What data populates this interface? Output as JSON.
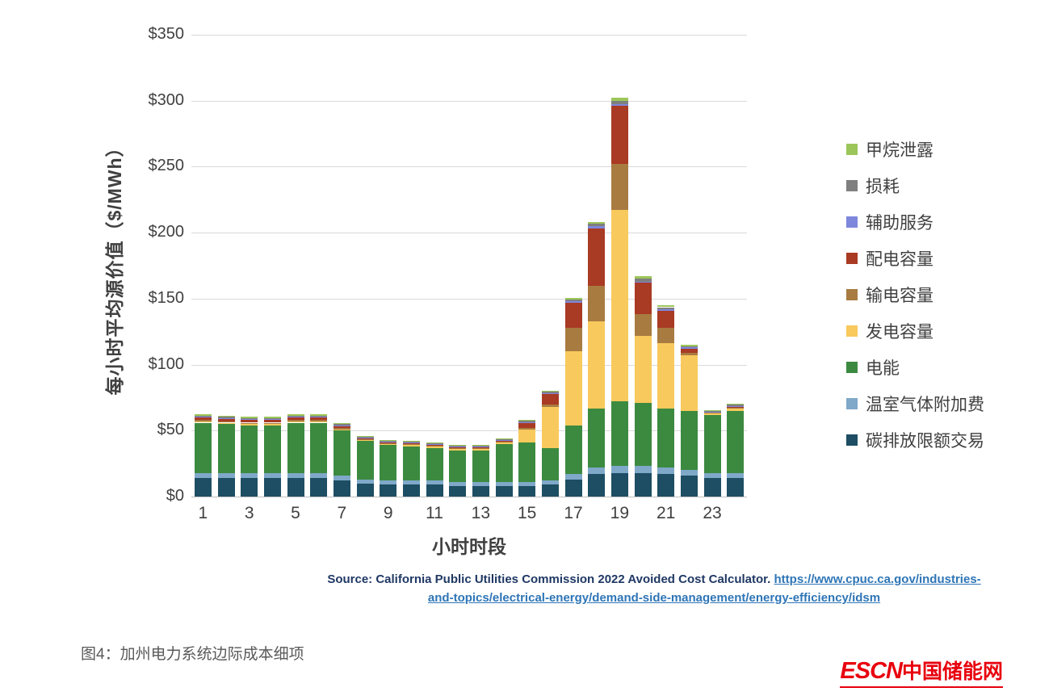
{
  "chart_data": {
    "type": "bar",
    "stacked": true,
    "xlabel": "小时时段",
    "ylabel": "每小时平均源价值（$/MWh）",
    "ylim": [
      0,
      350
    ],
    "yticks": [
      0,
      50,
      100,
      150,
      200,
      250,
      300,
      350
    ],
    "ytick_prefix": "$",
    "x": [
      1,
      2,
      3,
      4,
      5,
      6,
      7,
      8,
      9,
      10,
      11,
      12,
      13,
      14,
      15,
      16,
      17,
      18,
      19,
      20,
      21,
      22,
      23,
      24
    ],
    "xticks": [
      1,
      3,
      5,
      7,
      9,
      11,
      13,
      15,
      17,
      19,
      21,
      23
    ],
    "grid": true,
    "legend_position": "right",
    "series": [
      {
        "name": "碳排放限额交易",
        "color": "#1d4e63",
        "values": [
          14,
          14,
          14,
          14,
          14,
          14,
          12,
          10,
          9,
          9,
          9,
          8,
          8,
          8,
          8,
          9,
          13,
          17,
          18,
          18,
          17,
          16,
          14,
          14
        ]
      },
      {
        "name": "温室气体附加费",
        "color": "#7fa8c9",
        "values": [
          4,
          4,
          4,
          4,
          4,
          4,
          4,
          3,
          3,
          3,
          3,
          3,
          3,
          3,
          3,
          3,
          4,
          5,
          5,
          5,
          5,
          4,
          4,
          4
        ]
      },
      {
        "name": "电能",
        "color": "#3c8a40",
        "values": [
          38,
          37,
          36,
          36,
          38,
          38,
          34,
          29,
          27,
          26,
          25,
          24,
          24,
          29,
          30,
          25,
          37,
          45,
          49,
          48,
          45,
          45,
          44,
          47
        ]
      },
      {
        "name": "发电容量",
        "color": "#f8c95c",
        "values": [
          1,
          1,
          1,
          1,
          1,
          1,
          1,
          1,
          1,
          1,
          1,
          1,
          1,
          1,
          10,
          31,
          56,
          66,
          145,
          51,
          49,
          42,
          1,
          2
        ]
      },
      {
        "name": "输电容量",
        "color": "#a87b41",
        "values": [
          1,
          1,
          1,
          1,
          1,
          1,
          1,
          0.5,
          0.5,
          0.5,
          0.5,
          0.5,
          0.5,
          0.5,
          1,
          2,
          18,
          27,
          35,
          16,
          12,
          2,
          0.5,
          0.5
        ]
      },
      {
        "name": "配电容量",
        "color": "#a93a23",
        "values": [
          2,
          2,
          2,
          2,
          2,
          2,
          1.5,
          1,
          1,
          1,
          1,
          1,
          1,
          1,
          4,
          8,
          19,
          43,
          44,
          24,
          13,
          3,
          0.5,
          0.5
        ]
      },
      {
        "name": "辅助服务",
        "color": "#7d87db",
        "values": [
          0.5,
          0.5,
          0.5,
          0.5,
          0.5,
          0.5,
          0.5,
          0.3,
          0.3,
          0.3,
          0.3,
          0.3,
          0.3,
          0.3,
          0.5,
          0.5,
          1,
          2,
          1.5,
          1,
          1,
          1,
          0.5,
          0.5
        ]
      },
      {
        "name": "损耗",
        "color": "#7f7f7f",
        "values": [
          1,
          1,
          1,
          1,
          1,
          1,
          1,
          0.7,
          0.7,
          0.7,
          0.7,
          0.7,
          0.7,
          0.7,
          1,
          1,
          1.5,
          2,
          2.5,
          2,
          1.5,
          1,
          0.5,
          1
        ]
      },
      {
        "name": "甲烷泄露",
        "color": "#9cc659",
        "values": [
          1,
          1,
          1,
          1,
          1,
          1,
          1,
          0.5,
          0.5,
          0.5,
          0.5,
          0.5,
          0.5,
          0.5,
          0.5,
          0.5,
          1,
          1,
          2,
          2,
          1.5,
          1,
          0.5,
          1
        ]
      }
    ]
  },
  "source": {
    "text": "Source: California Public Utilities Commission 2022 Avoided Cost Calculator.",
    "link_line1": "https://www.cpuc.ca.gov/industries-",
    "link_line2": "and-topics/electrical-energy/demand-side-management/energy-efficiency/idsm"
  },
  "caption": "图4：加州电力系统边际成本细项",
  "logo": {
    "latin": "ESCN",
    "chinese": "中国储能网"
  }
}
